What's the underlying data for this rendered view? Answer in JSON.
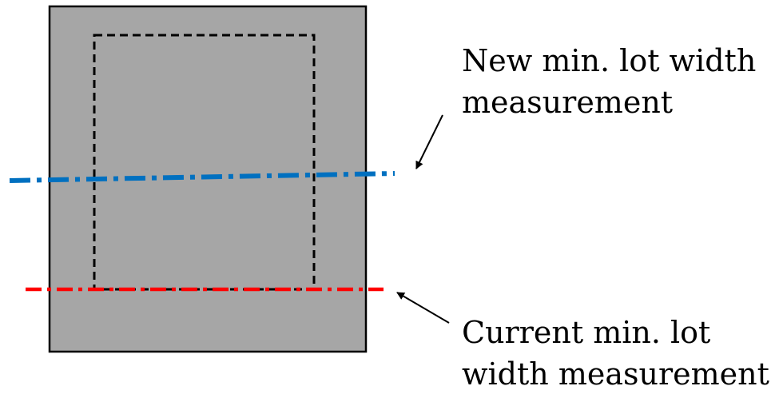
{
  "labels": {
    "new_measurement": {
      "line1": "New min. lot width",
      "line2": "measurement"
    },
    "current_measurement": {
      "line1": "Current min. lot",
      "line2": "width measurement"
    }
  },
  "colors": {
    "lot_fill": "#a6a6a6",
    "lot_border": "#000000",
    "building_outline": "#000000",
    "new_line": "#0070c0",
    "current_line": "#ff0000",
    "arrow": "#000000"
  }
}
